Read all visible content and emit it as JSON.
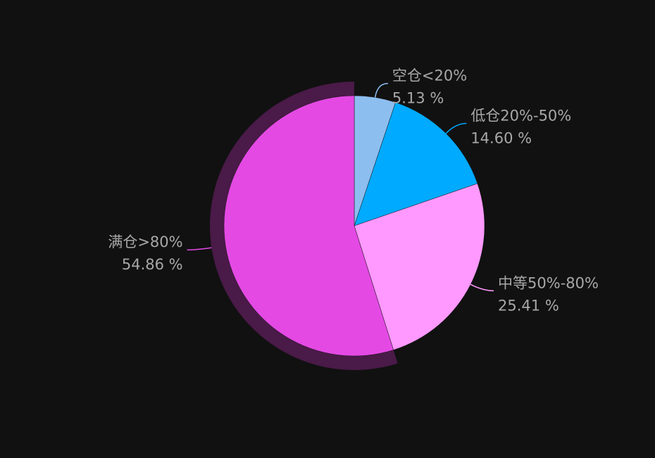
{
  "chart_data": {
    "type": "pie",
    "categories": [
      "空仓<20%",
      "低仓20%-50%",
      "中等50%-80%",
      "满仓>80%"
    ],
    "values": [
      5.13,
      14.6,
      25.41,
      54.86
    ],
    "value_labels": [
      "5.13 %",
      "14.60 %",
      "25.41 %",
      "54.86 %"
    ],
    "colors": [
      "#8dbef0",
      "#00aaff",
      "#ff99ff",
      "#e449e4"
    ]
  }
}
